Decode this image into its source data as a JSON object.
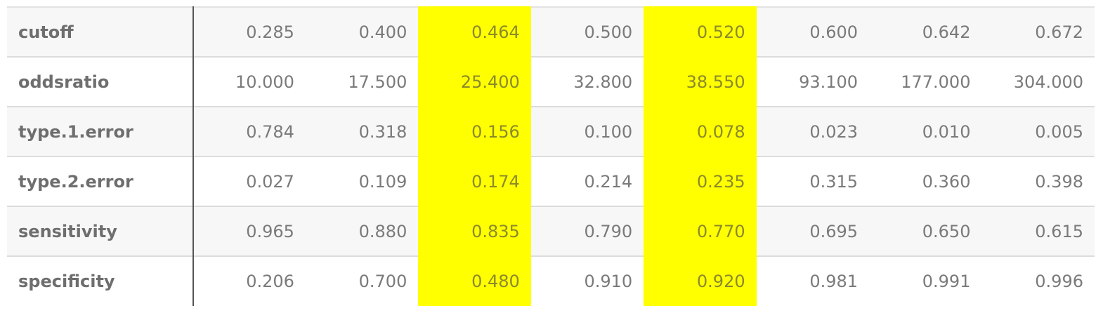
{
  "table": {
    "highlight_color": "#ffff00",
    "highlighted_columns": [
      2,
      4
    ],
    "rows": [
      {
        "label": "cutoff",
        "values": [
          "0.285",
          "0.400",
          "0.464",
          "0.500",
          "0.520",
          "0.600",
          "0.642",
          "0.672"
        ]
      },
      {
        "label": "oddsratio",
        "values": [
          "10.000",
          "17.500",
          "25.400",
          "32.800",
          "38.550",
          "93.100",
          "177.000",
          "304.000"
        ]
      },
      {
        "label": "type.1.error",
        "values": [
          "0.784",
          "0.318",
          "0.156",
          "0.100",
          "0.078",
          "0.023",
          "0.010",
          "0.005"
        ]
      },
      {
        "label": "type.2.error",
        "values": [
          "0.027",
          "0.109",
          "0.174",
          "0.214",
          "0.235",
          "0.315",
          "0.360",
          "0.398"
        ]
      },
      {
        "label": "sensitivity",
        "values": [
          "0.965",
          "0.880",
          "0.835",
          "0.790",
          "0.770",
          "0.695",
          "0.650",
          "0.615"
        ]
      },
      {
        "label": "specificity",
        "values": [
          "0.206",
          "0.700",
          "0.480",
          "0.910",
          "0.920",
          "0.981",
          "0.991",
          "0.996"
        ]
      }
    ]
  }
}
